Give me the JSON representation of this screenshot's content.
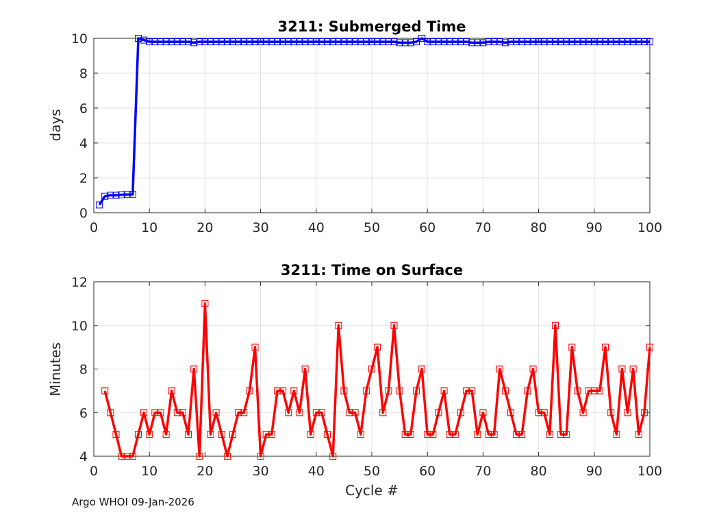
{
  "footer": "Argo WHOI 09-Jan-2026",
  "chart_data": [
    {
      "type": "line",
      "title": "3211: Submerged Time",
      "xlabel": "",
      "ylabel": "days",
      "xlim": [
        0,
        100
      ],
      "ylim": [
        0,
        10
      ],
      "xticks": [
        "0",
        "10",
        "20",
        "30",
        "40",
        "50",
        "60",
        "70",
        "80",
        "90",
        "100"
      ],
      "yticks": [
        "0",
        "2",
        "4",
        "6",
        "8",
        "10"
      ],
      "grid": true,
      "color": "#0000ff",
      "marker": "square",
      "x": [
        1,
        2,
        3,
        4,
        5,
        6,
        7,
        8,
        9,
        10,
        11,
        12,
        13,
        14,
        15,
        16,
        17,
        18,
        19,
        20,
        21,
        22,
        23,
        24,
        25,
        26,
        27,
        28,
        29,
        30,
        31,
        32,
        33,
        34,
        35,
        36,
        37,
        38,
        39,
        40,
        41,
        42,
        43,
        44,
        45,
        46,
        47,
        48,
        49,
        50,
        51,
        52,
        53,
        54,
        55,
        56,
        57,
        58,
        59,
        60,
        61,
        62,
        63,
        64,
        65,
        66,
        67,
        68,
        69,
        70,
        71,
        72,
        73,
        74,
        75,
        76,
        77,
        78,
        79,
        80,
        81,
        82,
        83,
        84,
        85,
        86,
        87,
        88,
        89,
        90,
        91,
        92,
        93,
        94,
        95,
        96,
        97,
        98,
        99,
        100
      ],
      "values": [
        0.45,
        0.95,
        1.0,
        1.0,
        1.03,
        1.05,
        1.05,
        10.0,
        9.9,
        9.8,
        9.8,
        9.8,
        9.8,
        9.8,
        9.8,
        9.8,
        9.8,
        9.75,
        9.8,
        9.8,
        9.8,
        9.8,
        9.8,
        9.8,
        9.8,
        9.8,
        9.8,
        9.8,
        9.8,
        9.8,
        9.8,
        9.8,
        9.8,
        9.8,
        9.8,
        9.8,
        9.8,
        9.8,
        9.8,
        9.8,
        9.8,
        9.8,
        9.8,
        9.8,
        9.8,
        9.8,
        9.8,
        9.8,
        9.8,
        9.8,
        9.8,
        9.8,
        9.8,
        9.8,
        9.75,
        9.75,
        9.75,
        9.8,
        10.0,
        9.8,
        9.8,
        9.8,
        9.8,
        9.8,
        9.8,
        9.8,
        9.8,
        9.75,
        9.75,
        9.75,
        9.8,
        9.8,
        9.8,
        9.75,
        9.8,
        9.8,
        9.8,
        9.8,
        9.8,
        9.8,
        9.8,
        9.8,
        9.8,
        9.8,
        9.8,
        9.8,
        9.8,
        9.8,
        9.8,
        9.8,
        9.8,
        9.8,
        9.8,
        9.8,
        9.8,
        9.8,
        9.8,
        9.8,
        9.8,
        9.8
      ]
    },
    {
      "type": "line",
      "title": "3211: Time on Surface",
      "xlabel": "Cycle #",
      "ylabel": "Minutes",
      "xlim": [
        0,
        100
      ],
      "ylim": [
        4,
        12
      ],
      "xticks": [
        "0",
        "10",
        "20",
        "30",
        "40",
        "50",
        "60",
        "70",
        "80",
        "90",
        "100"
      ],
      "yticks": [
        "4",
        "6",
        "8",
        "10",
        "12"
      ],
      "grid": true,
      "color": "#ff0000",
      "marker": "square",
      "x": [
        2,
        3,
        4,
        5,
        6,
        7,
        8,
        9,
        10,
        11,
        12,
        13,
        14,
        15,
        16,
        17,
        18,
        19,
        20,
        21,
        22,
        23,
        24,
        25,
        26,
        27,
        28,
        29,
        30,
        31,
        32,
        33,
        34,
        35,
        36,
        37,
        38,
        39,
        40,
        41,
        42,
        43,
        44,
        45,
        46,
        47,
        48,
        49,
        50,
        51,
        52,
        53,
        54,
        55,
        56,
        57,
        58,
        59,
        60,
        61,
        62,
        63,
        64,
        65,
        66,
        67,
        68,
        69,
        70,
        71,
        72,
        73,
        74,
        75,
        76,
        77,
        78,
        79,
        80,
        81,
        82,
        83,
        84,
        85,
        86,
        87,
        88,
        89,
        90,
        91,
        92,
        93,
        94,
        95,
        96,
        97,
        98,
        99,
        100
      ],
      "values": [
        7,
        6,
        5,
        4,
        4,
        4,
        5,
        6,
        5,
        6,
        6,
        5,
        7,
        6,
        6,
        5,
        8,
        4,
        11,
        5,
        6,
        5,
        4,
        5,
        6,
        6,
        7,
        9,
        4,
        5,
        5,
        7,
        7,
        6,
        7,
        6,
        8,
        5,
        6,
        6,
        5,
        4,
        10,
        7,
        6,
        6,
        5,
        7,
        8,
        9,
        6,
        7,
        10,
        7,
        5,
        5,
        7,
        8,
        5,
        5,
        6,
        7,
        5,
        5,
        6,
        7,
        7,
        5,
        6,
        5,
        5,
        8,
        7,
        6,
        5,
        5,
        7,
        8,
        6,
        6,
        5,
        10,
        5,
        5,
        9,
        7,
        6,
        7,
        7,
        7,
        9,
        6,
        5,
        8,
        6,
        8,
        5,
        6,
        9
      ]
    }
  ]
}
